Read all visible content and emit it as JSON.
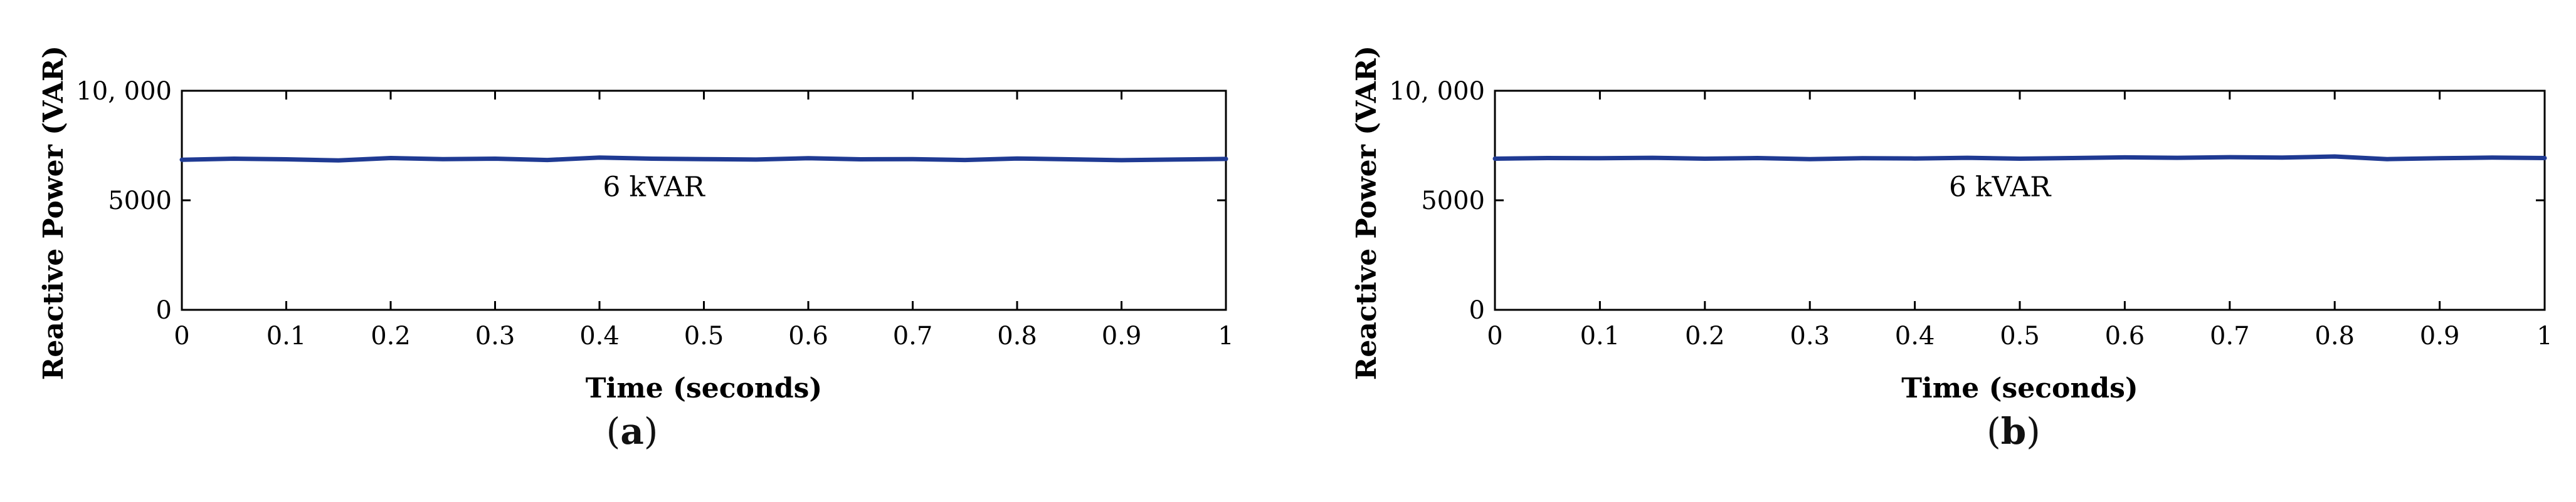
{
  "chart_data": [
    {
      "type": "line",
      "panel_label": "a",
      "xlabel": "Time (seconds)",
      "ylabel": "Reactive Power (VAR)",
      "xlim": [
        0,
        1
      ],
      "ylim": [
        0,
        10000
      ],
      "xticks": [
        "0",
        "0.1",
        "0.2",
        "0.3",
        "0.4",
        "0.5",
        "0.6",
        "0.7",
        "0.8",
        "0.9",
        "1"
      ],
      "yticks": [
        "0",
        "5000",
        "10, 000"
      ],
      "annotation": "6 kVAR",
      "series": [
        {
          "color": "#1f3a93",
          "x": [
            0,
            0.05,
            0.1,
            0.15,
            0.2,
            0.25,
            0.3,
            0.35,
            0.4,
            0.45,
            0.5,
            0.55,
            0.6,
            0.65,
            0.7,
            0.75,
            0.8,
            0.85,
            0.9,
            0.95,
            1
          ],
          "y": [
            6850,
            6900,
            6870,
            6820,
            6930,
            6880,
            6900,
            6840,
            6950,
            6900,
            6880,
            6860,
            6920,
            6870,
            6880,
            6840,
            6910,
            6870,
            6830,
            6860,
            6890
          ]
        }
      ]
    },
    {
      "type": "line",
      "panel_label": "b",
      "xlabel": "Time (seconds)",
      "ylabel": "Reactive Power (VAR)",
      "xlim": [
        0,
        1
      ],
      "ylim": [
        0,
        10000
      ],
      "xticks": [
        "0",
        "0.1",
        "0.2",
        "0.3",
        "0.4",
        "0.5",
        "0.6",
        "0.7",
        "0.8",
        "0.9",
        "1"
      ],
      "yticks": [
        "0",
        "5000",
        "10, 000"
      ],
      "annotation": "6 kVAR",
      "series": [
        {
          "color": "#1f3a93",
          "x": [
            0,
            0.05,
            0.1,
            0.15,
            0.2,
            0.25,
            0.3,
            0.35,
            0.4,
            0.45,
            0.5,
            0.55,
            0.6,
            0.65,
            0.7,
            0.75,
            0.8,
            0.85,
            0.9,
            0.95,
            1
          ],
          "y": [
            6900,
            6930,
            6920,
            6940,
            6900,
            6930,
            6880,
            6920,
            6910,
            6940,
            6900,
            6930,
            6960,
            6940,
            6970,
            6950,
            7000,
            6880,
            6920,
            6950,
            6930
          ]
        }
      ]
    }
  ]
}
